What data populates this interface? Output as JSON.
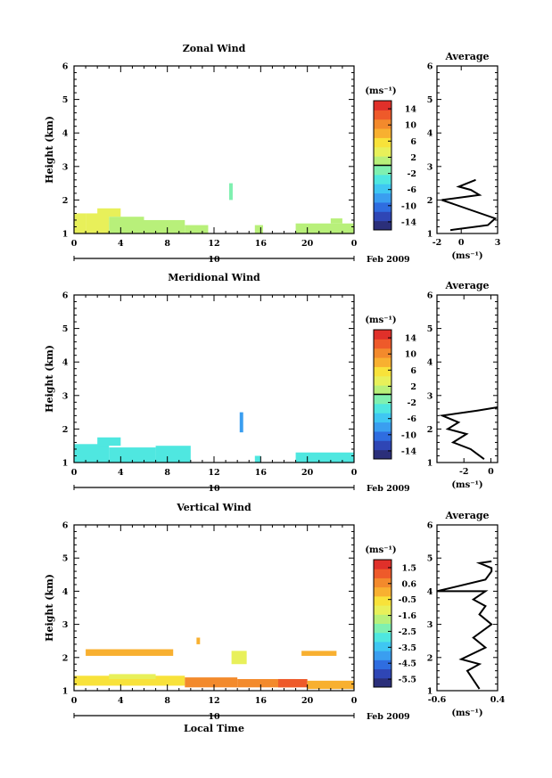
{
  "figure": {
    "date_label": "Feb 2009",
    "time_axis_label": "Local Time",
    "colors": {
      "palette": [
        "#2b2f7a",
        "#2f46b5",
        "#2f6de0",
        "#3a9ef0",
        "#3fc7f2",
        "#4fe7e0",
        "#7ff0b0",
        "#b8f07a",
        "#e8f05a",
        "#f8e23a",
        "#f8b030",
        "#f38a2c",
        "#ee5a2a",
        "#e0302a"
      ],
      "axis": "#000000",
      "background": "#ffffff"
    }
  },
  "chart_data": [
    {
      "type": "heatmap",
      "title": "Zonal Wind",
      "ylabel": "Height (km)",
      "ylim": [
        1,
        6
      ],
      "xlim": [
        0,
        24
      ],
      "x_ticks": [
        "0",
        "4",
        "8",
        "12",
        "16",
        "20",
        "0"
      ],
      "y_ticks": [
        "1",
        "2",
        "3",
        "4",
        "5",
        "6"
      ],
      "day_label": "10",
      "colorbar": {
        "unit": "(ms⁻¹)",
        "range": [
          -16,
          16
        ],
        "ticks": [
          "14",
          "10",
          "6",
          "2",
          "-2",
          "-6",
          "-10",
          "-14"
        ],
        "zero_line": true
      },
      "cells": [
        {
          "x0": 0,
          "x1": 1,
          "y0": 1.0,
          "y1": 1.6,
          "v": 2.5
        },
        {
          "x0": 1,
          "x1": 3,
          "y0": 1.0,
          "y1": 1.6,
          "v": 3
        },
        {
          "x0": 2,
          "x1": 4,
          "y0": 1.5,
          "y1": 1.75,
          "v": 4
        },
        {
          "x0": 3,
          "x1": 6,
          "y0": 1.0,
          "y1": 1.5,
          "v": 2
        },
        {
          "x0": 6,
          "x1": 9.5,
          "y0": 1.0,
          "y1": 1.4,
          "v": 1
        },
        {
          "x0": 9.5,
          "x1": 11.5,
          "y0": 1.0,
          "y1": 1.25,
          "v": 0.5
        },
        {
          "x0": 13.3,
          "x1": 13.6,
          "y0": 2.0,
          "y1": 2.5,
          "v": -2
        },
        {
          "x0": 15.5,
          "x1": 16.2,
          "y0": 1.0,
          "y1": 1.25,
          "v": 1
        },
        {
          "x0": 19,
          "x1": 24,
          "y0": 1.0,
          "y1": 1.3,
          "v": 0.5
        },
        {
          "x0": 22,
          "x1": 23,
          "y0": 1.3,
          "y1": 1.45,
          "v": 1
        }
      ],
      "profile": {
        "title": "Average",
        "xlabel": "(ms⁻¹)",
        "xlim": [
          -2,
          3
        ],
        "x_ticks": [
          "-2",
          "0",
          "3"
        ],
        "y_ticks": [
          "1",
          "2",
          "3",
          "4",
          "5",
          "6"
        ],
        "ylim": [
          1,
          6
        ],
        "x": [
          -0.9,
          2.2,
          2.8,
          -1.6,
          1.5,
          0.8,
          -0.2,
          1.2
        ],
        "y": [
          1.1,
          1.25,
          1.45,
          2.0,
          2.15,
          2.3,
          2.4,
          2.6
        ]
      }
    },
    {
      "type": "heatmap",
      "title": "Meridional Wind",
      "ylabel": "Height (km)",
      "ylim": [
        1,
        6
      ],
      "xlim": [
        0,
        24
      ],
      "x_ticks": [
        "0",
        "4",
        "8",
        "12",
        "16",
        "20",
        "0"
      ],
      "y_ticks": [
        "1",
        "2",
        "3",
        "4",
        "5",
        "6"
      ],
      "day_label": "10",
      "colorbar": {
        "unit": "(ms⁻¹)",
        "range": [
          -16,
          16
        ],
        "ticks": [
          "14",
          "10",
          "6",
          "2",
          "-2",
          "-6",
          "-10",
          "-14"
        ],
        "zero_line": true
      },
      "cells": [
        {
          "x0": 0,
          "x1": 3,
          "y0": 1.0,
          "y1": 1.55,
          "v": -3
        },
        {
          "x0": 2,
          "x1": 4,
          "y0": 1.5,
          "y1": 1.75,
          "v": -4
        },
        {
          "x0": 3,
          "x1": 7,
          "y0": 1.0,
          "y1": 1.45,
          "v": -3
        },
        {
          "x0": 7,
          "x1": 10,
          "y0": 1.0,
          "y1": 1.5,
          "v": -3
        },
        {
          "x0": 14.2,
          "x1": 14.5,
          "y0": 1.9,
          "y1": 2.5,
          "v": -8
        },
        {
          "x0": 15.5,
          "x1": 16,
          "y0": 1.0,
          "y1": 1.2,
          "v": -3
        },
        {
          "x0": 19,
          "x1": 24,
          "y0": 1.0,
          "y1": 1.3,
          "v": -3
        }
      ],
      "profile": {
        "title": "Average",
        "xlabel": "(ms⁻¹)",
        "xlim": [
          -4,
          0.5
        ],
        "x_ticks": [
          "-2",
          "0"
        ],
        "y_ticks": [
          "1",
          "2",
          "3",
          "4",
          "5",
          "6"
        ],
        "ylim": [
          1,
          6
        ],
        "x": [
          -0.5,
          -1.5,
          -2.8,
          -1.8,
          -3.2,
          -2.4,
          -3.6,
          -1.0,
          0.5
        ],
        "y": [
          1.1,
          1.4,
          1.6,
          1.85,
          2.0,
          2.2,
          2.4,
          2.55,
          2.65
        ]
      }
    },
    {
      "type": "heatmap",
      "title": "Vertical Wind",
      "ylabel": "Height (km)",
      "xlabel": "Local Time",
      "ylim": [
        1,
        6
      ],
      "xlim": [
        0,
        24
      ],
      "x_ticks": [
        "0",
        "4",
        "8",
        "12",
        "16",
        "20",
        "0"
      ],
      "y_ticks": [
        "1",
        "2",
        "3",
        "4",
        "5",
        "6"
      ],
      "day_label": "10",
      "colorbar": {
        "unit": "(ms⁻¹)",
        "range": [
          -6,
          2
        ],
        "ticks": [
          "1.5",
          "0.6",
          "-0.5",
          "-1.6",
          "-2.5",
          "-3.5",
          "-4.5",
          "-5.5"
        ],
        "zero_line": false
      },
      "cells": [
        {
          "x0": 0,
          "x1": 9.5,
          "y0": 1.15,
          "y1": 1.45,
          "v": -0.3
        },
        {
          "x0": 3,
          "x1": 7,
          "y0": 1.35,
          "y1": 1.5,
          "v": -1.0
        },
        {
          "x0": 1,
          "x1": 8.5,
          "y0": 2.05,
          "y1": 2.25,
          "v": -0.1
        },
        {
          "x0": 9.5,
          "x1": 14,
          "y0": 1.1,
          "y1": 1.4,
          "v": 0.6
        },
        {
          "x0": 13.5,
          "x1": 14.8,
          "y0": 1.8,
          "y1": 2.2,
          "v": -1.2
        },
        {
          "x0": 14,
          "x1": 19,
          "y0": 1.1,
          "y1": 1.35,
          "v": 0.8
        },
        {
          "x0": 17.5,
          "x1": 20,
          "y0": 1.1,
          "y1": 1.35,
          "v": 1.2
        },
        {
          "x0": 20,
          "x1": 24,
          "y0": 1.05,
          "y1": 1.3,
          "v": -0.2
        },
        {
          "x0": 19.5,
          "x1": 22.5,
          "y0": 2.05,
          "y1": 2.2,
          "v": -0.2
        },
        {
          "x0": 10.5,
          "x1": 10.8,
          "y0": 2.4,
          "y1": 2.6,
          "v": -0.2
        }
      ],
      "profile": {
        "title": "Average",
        "xlabel": "(ms⁻¹)",
        "xlim": [
          -0.6,
          0.4
        ],
        "x_ticks": [
          "-0.6",
          "0.4"
        ],
        "y_ticks": [
          "1",
          "2",
          "3",
          "4",
          "5",
          "6"
        ],
        "ylim": [
          1,
          6
        ],
        "x": [
          0.1,
          -0.1,
          0.1,
          -0.2,
          0.2,
          0.0,
          0.3,
          0.1,
          0.2,
          0.0,
          0.2,
          -0.6,
          0.2,
          0.3,
          0.3,
          0.1,
          0.3
        ],
        "y": [
          1.05,
          1.6,
          1.8,
          1.95,
          2.3,
          2.6,
          3.0,
          3.3,
          3.55,
          3.75,
          4.0,
          4.0,
          4.35,
          4.6,
          4.7,
          4.85,
          4.9
        ]
      }
    }
  ]
}
